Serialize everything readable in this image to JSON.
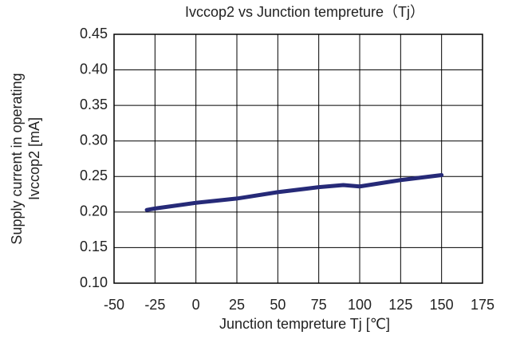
{
  "chart_data": {
    "type": "line",
    "title": "Ivccop2 vs Junction tempreture（Tj）",
    "y_label": [
      "Supply current in operating",
      "Ivccop2 [mA]"
    ],
    "x_label": "Junction tempreture Tj [℃]",
    "x": [
      -30,
      -25,
      0,
      25,
      50,
      75,
      90,
      100,
      125,
      150
    ],
    "series": [
      {
        "name": "Ivccop2",
        "color": "#262a78",
        "values": [
          0.203,
          0.205,
          0.213,
          0.219,
          0.228,
          0.235,
          0.238,
          0.236,
          0.245,
          0.252
        ]
      }
    ],
    "xlim": [
      -50,
      175
    ],
    "xticks": [
      -50,
      -25,
      0,
      25,
      50,
      75,
      100,
      125,
      150,
      175
    ],
    "ylim": [
      0.1,
      0.45
    ],
    "yticks": [
      {
        "value": 0.1,
        "label": "0.10"
      },
      0.15,
      {
        "value": 0.2,
        "label": "0.20"
      },
      0.25,
      {
        "value": 0.3,
        "label": "0.30"
      },
      0.35,
      {
        "value": 0.4,
        "label": "0.40"
      },
      0.45
    ],
    "grid": true
  }
}
